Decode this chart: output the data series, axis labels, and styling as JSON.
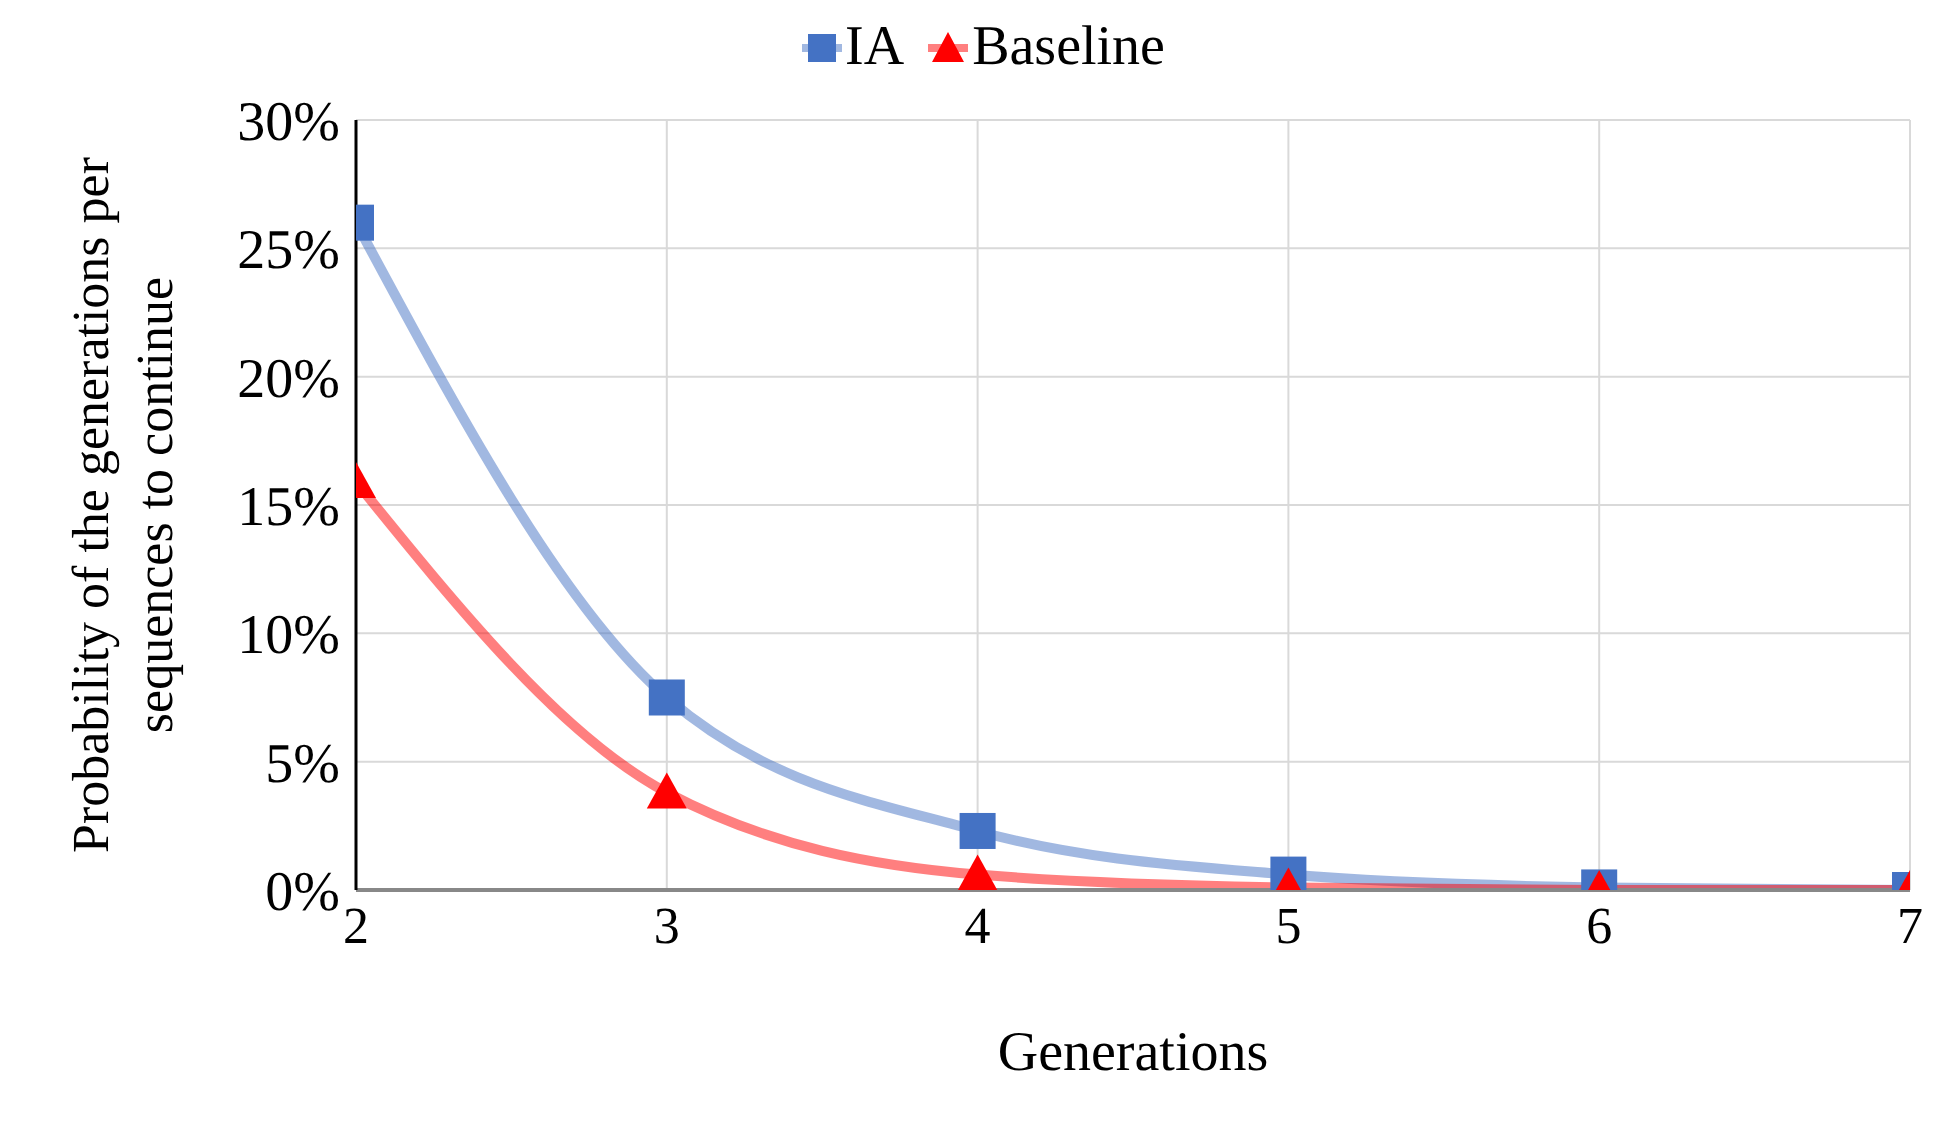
{
  "chart_data": {
    "type": "line",
    "xlabel": "Generations",
    "ylabel": "Probability of the generations per sequences to continue",
    "x": [
      2,
      3,
      4,
      5,
      6,
      7
    ],
    "series": [
      {
        "name": "IA",
        "color": "#4472c4",
        "marker": "square",
        "values": [
          26,
          7.5,
          2.3,
          0.6,
          0.1,
          0
        ]
      },
      {
        "name": "Baseline",
        "color": "#ff0000",
        "marker": "triangle",
        "values": [
          15.9,
          3.8,
          0.6,
          0.1,
          0,
          0
        ]
      }
    ],
    "xlim": [
      2,
      7
    ],
    "xticks": [
      2,
      3,
      4,
      5,
      6,
      7
    ],
    "ylim": [
      0,
      30
    ],
    "yticks": [
      {
        "value": 0,
        "label": "0%"
      },
      {
        "value": 5,
        "label": "5%"
      },
      {
        "value": 10,
        "label": "10%"
      },
      {
        "value": 15,
        "label": "15%"
      },
      {
        "value": 20,
        "label": "20%"
      },
      {
        "value": 25,
        "label": "25%"
      },
      {
        "value": 30,
        "label": "30%"
      }
    ],
    "grid": true,
    "legend": "top",
    "line_style": "solid"
  }
}
